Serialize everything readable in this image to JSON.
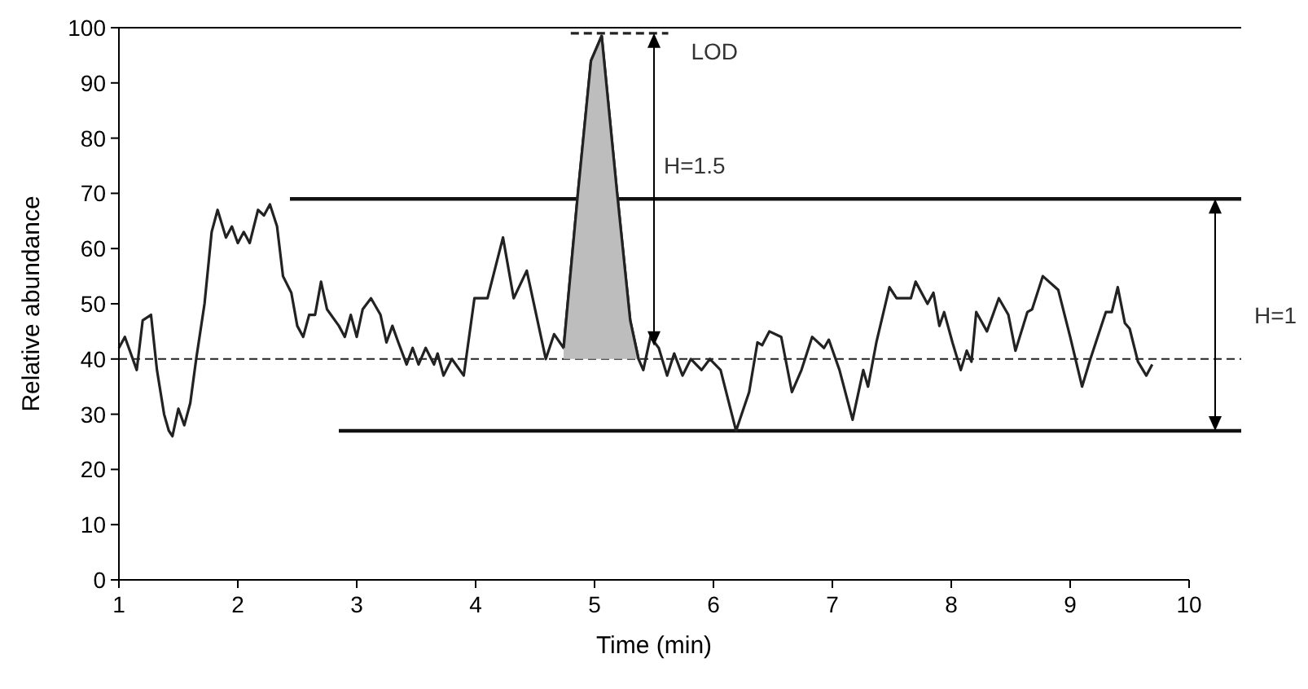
{
  "chart_data": {
    "type": "line",
    "xlabel": "Time (min)",
    "ylabel": "Relative abundance",
    "xlim": [
      1,
      10
    ],
    "ylim": [
      0,
      100
    ],
    "xticks": [
      1,
      2,
      3,
      4,
      5,
      6,
      7,
      8,
      9,
      10
    ],
    "yticks": [
      0,
      10,
      20,
      30,
      40,
      50,
      60,
      70,
      80,
      90,
      100
    ],
    "grid": false,
    "marker": "none",
    "line_style": "solid",
    "series": [
      {
        "color": "#222222",
        "x": [
          1.0,
          1.05,
          1.1,
          1.15,
          1.2,
          1.27,
          1.32,
          1.38,
          1.42,
          1.45,
          1.5,
          1.55,
          1.6,
          1.65,
          1.72,
          1.78,
          1.83,
          1.9,
          1.95,
          2.0,
          2.05,
          2.1,
          2.17,
          2.22,
          2.27,
          2.33,
          2.38,
          2.45,
          2.5,
          2.55,
          2.6,
          2.65,
          2.7,
          2.75,
          2.85,
          2.9,
          2.95,
          3.0,
          3.05,
          3.12,
          3.2,
          3.25,
          3.3,
          3.35,
          3.42,
          3.47,
          3.52,
          3.58,
          3.65,
          3.68,
          3.73,
          3.8,
          3.9,
          3.99,
          4.1,
          4.23,
          4.32,
          4.43,
          4.59,
          4.66,
          4.74,
          4.86,
          4.97,
          5.06,
          5.19,
          5.3,
          5.37,
          5.41,
          5.47,
          5.54,
          5.61,
          5.67,
          5.74,
          5.81,
          5.9,
          5.97,
          6.06,
          6.19,
          6.3,
          6.37,
          6.41,
          6.47,
          6.57,
          6.66,
          6.74,
          6.83,
          6.93,
          6.97,
          7.06,
          7.17,
          7.26,
          7.3,
          7.37,
          7.48,
          7.54,
          7.66,
          7.7,
          7.8,
          7.85,
          7.9,
          7.94,
          8.01,
          8.08,
          8.13,
          8.17,
          8.21,
          8.3,
          8.4,
          8.48,
          8.54,
          8.64,
          8.68,
          8.77,
          8.9,
          9.0,
          9.1,
          9.17,
          9.3,
          9.35,
          9.4,
          9.46,
          9.5,
          9.57,
          9.64,
          9.69
        ],
        "values": [
          42,
          44,
          41,
          38,
          47,
          48,
          38,
          30,
          27,
          26,
          31,
          28,
          32,
          40,
          50,
          63,
          67,
          62,
          64,
          61,
          63,
          61,
          67,
          66,
          68,
          64,
          55,
          52,
          46,
          44,
          48,
          48,
          54,
          49,
          46,
          44,
          48,
          44,
          49,
          51,
          48,
          43,
          46,
          43,
          39,
          42,
          39,
          42,
          39,
          41,
          37,
          40,
          37,
          51,
          51,
          62,
          51,
          56,
          40,
          44.5,
          42,
          70,
          94,
          98.5,
          70,
          47,
          40,
          38,
          44,
          42,
          37,
          41,
          37,
          40,
          38,
          40,
          38,
          27,
          34,
          43,
          42.5,
          45,
          44,
          34,
          38,
          44,
          42,
          43.5,
          38,
          29,
          38,
          35,
          43,
          53,
          51,
          51,
          54,
          50,
          52,
          46,
          48.5,
          43,
          38,
          41.5,
          39.5,
          48.5,
          45,
          51,
          48,
          41.5,
          48.5,
          49,
          55,
          52.5,
          44,
          35,
          40,
          48.5,
          48.5,
          53,
          46.5,
          45.5,
          39.5,
          37,
          39
        ]
      },
      {
        "type": "area",
        "color": "#bdbdbd",
        "x": [
          4.74,
          4.86,
          4.97,
          5.06,
          5.19,
          5.3,
          5.37
        ],
        "values": [
          42,
          70,
          94,
          98.5,
          70,
          47,
          40
        ]
      },
      {
        "type": "line",
        "color": "#222222",
        "line_style": "dashed",
        "x": [
          4.8,
          5.62
        ],
        "values": [
          99,
          99
        ]
      }
    ],
    "ref_lines": [
      {
        "axis": "y",
        "value": 40,
        "line_style": "dashed",
        "color": "#222222"
      },
      {
        "axis": "y",
        "value": 69,
        "line_style": "solid",
        "color": "#111111"
      },
      {
        "axis": "y",
        "value": 27,
        "line_style": "solid",
        "color": "#111111"
      }
    ],
    "annotations": [
      {
        "text": "LOD",
        "x": 5.62,
        "y": 99
      },
      {
        "text": "H=1.5",
        "x": 5.5,
        "y": 70
      },
      "H=1"
    ]
  }
}
